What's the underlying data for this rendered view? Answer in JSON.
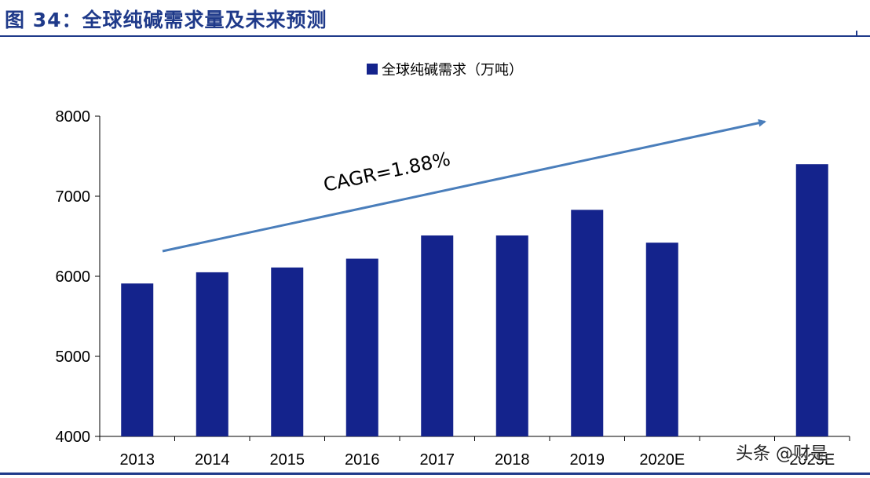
{
  "figure": {
    "title": "图 34：全球纯碱需求量及未来预测"
  },
  "colors": {
    "bar": "#14238c",
    "accent": "#1f3a8a",
    "trend_arrow": "#4a7ebb"
  },
  "watermark": "头条 @财是",
  "chart_data": {
    "type": "bar",
    "title": "",
    "categories": [
      "2013",
      "2014",
      "2015",
      "2016",
      "2017",
      "2018",
      "2019",
      "2020E",
      "",
      "2025E"
    ],
    "series": [
      {
        "name": "全球纯碱需求（万吨）",
        "values": [
          5910,
          6050,
          6110,
          6220,
          6510,
          6510,
          6830,
          6420,
          null,
          7400
        ]
      }
    ],
    "xlabel": "",
    "ylabel": "",
    "ylim": [
      4000,
      8000
    ],
    "yticks": [
      4000,
      5000,
      6000,
      7000,
      8000
    ],
    "grid": false,
    "legend": "top-center",
    "annotations": [
      {
        "text": "CAGR=1.88%",
        "kind": "trend-arrow",
        "from_year": "2013",
        "to_year": "2025E"
      }
    ]
  }
}
